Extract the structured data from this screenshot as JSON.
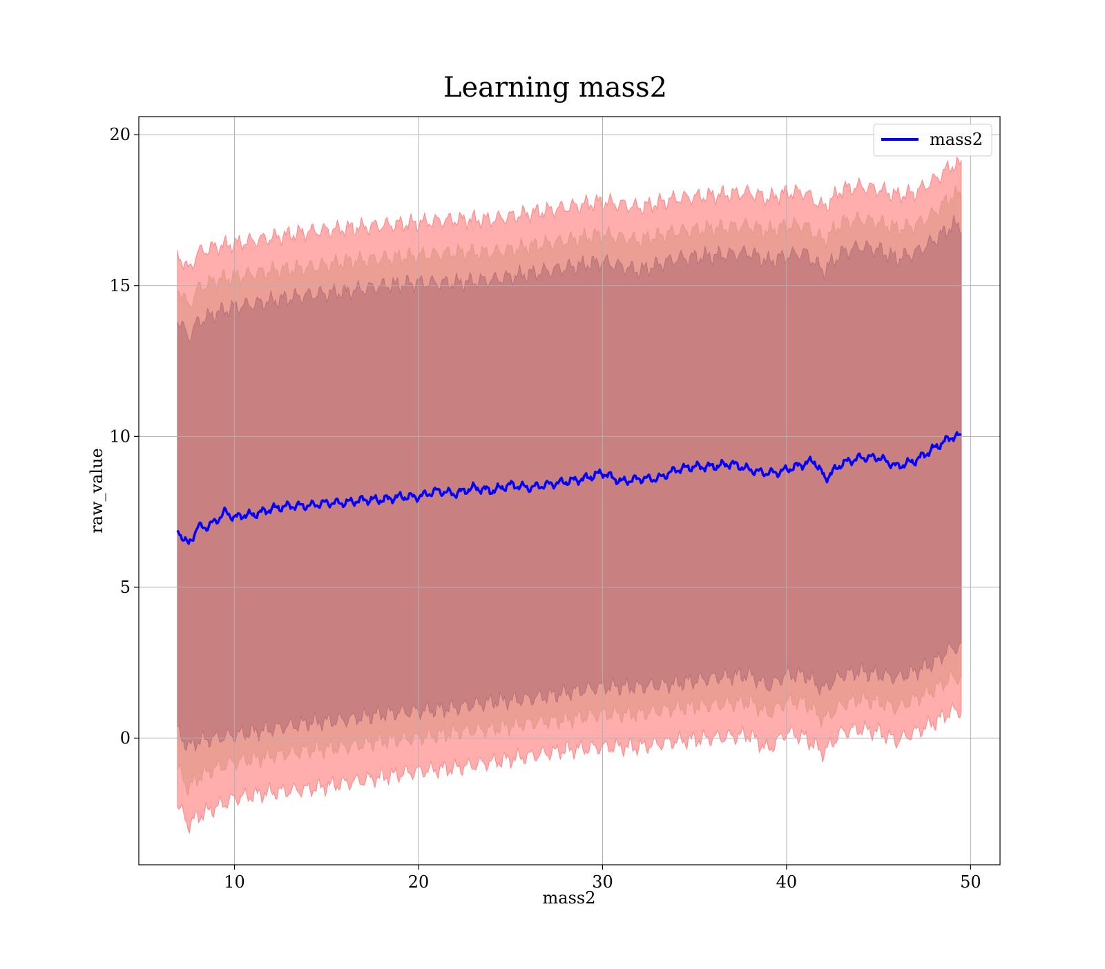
{
  "chart_data": {
    "type": "area",
    "title": "Learning mass2",
    "xlabel": "mass2",
    "ylabel": "raw_value",
    "xlim": [
      4.8,
      51.6
    ],
    "ylim": [
      -4.2,
      20.6
    ],
    "xticks": [
      10,
      20,
      30,
      40,
      50
    ],
    "yticks": [
      0,
      5,
      10,
      15,
      20
    ],
    "grid": true,
    "legend_position": "top-right",
    "x_start": 6.9,
    "x_end": 49.5,
    "series": [
      {
        "name": "mass2",
        "color": "#0000ff",
        "x": [
          6.9,
          7.5,
          8,
          8.5,
          9,
          9.5,
          10,
          10.5,
          11,
          12,
          13,
          14,
          15,
          16,
          17,
          18,
          19,
          20,
          21,
          22,
          23,
          24,
          25,
          26,
          27,
          28,
          29,
          30,
          31,
          32,
          33,
          34,
          35,
          36,
          37,
          38,
          38.7,
          39.5,
          40.5,
          41.5,
          42.1,
          43,
          44,
          45,
          46,
          47,
          48,
          49,
          49.5
        ],
        "values": [
          6.9,
          6.4,
          7.0,
          7.0,
          7.2,
          7.5,
          7.3,
          7.4,
          7.4,
          7.6,
          7.7,
          7.7,
          7.8,
          7.8,
          7.9,
          7.9,
          8.0,
          8.0,
          8.2,
          8.1,
          8.3,
          8.2,
          8.4,
          8.3,
          8.4,
          8.5,
          8.6,
          8.8,
          8.5,
          8.6,
          8.6,
          8.9,
          9.0,
          9.0,
          9.1,
          8.9,
          8.8,
          8.8,
          9.0,
          9.2,
          8.6,
          9.1,
          9.3,
          9.3,
          9.0,
          9.2,
          9.6,
          10.0,
          10.0
        ]
      }
    ],
    "bands": [
      {
        "level": "outer",
        "color": "#ff0000",
        "x": [
          6.9,
          7.5,
          8,
          9,
          10,
          12,
          14,
          16,
          18,
          20,
          22,
          24,
          26,
          28,
          30,
          32,
          34,
          36,
          38,
          39,
          40,
          41,
          42,
          43,
          44,
          45,
          46,
          47,
          48,
          49,
          49.5
        ],
        "lower": [
          -2.2,
          -2.9,
          -2.6,
          -2.3,
          -2.0,
          -1.8,
          -1.7,
          -1.5,
          -1.3,
          -1.1,
          -1.0,
          -0.8,
          -0.6,
          -0.4,
          -0.3,
          -0.3,
          -0.1,
          0.0,
          0.1,
          -0.4,
          0.2,
          0.0,
          -0.5,
          0.2,
          0.3,
          0.2,
          -0.1,
          0.2,
          0.5,
          0.9,
          0.9
        ],
        "upper": [
          16.1,
          15.5,
          16.1,
          16.3,
          16.4,
          16.6,
          16.8,
          16.9,
          17.0,
          17.1,
          17.2,
          17.2,
          17.4,
          17.6,
          17.8,
          17.6,
          17.9,
          18.0,
          18.1,
          17.9,
          18.1,
          18.1,
          17.6,
          18.2,
          18.3,
          18.2,
          18.0,
          18.1,
          18.5,
          19.0,
          19.0
        ]
      },
      {
        "level": "middle",
        "color": "#c08060",
        "x": [
          6.9,
          7.5,
          8,
          9,
          10,
          12,
          14,
          16,
          18,
          20,
          22,
          24,
          26,
          28,
          30,
          32,
          34,
          36,
          38,
          39,
          40,
          41,
          42,
          43,
          44,
          45,
          46,
          47,
          48,
          49,
          49.5
        ],
        "lower": [
          -1.0,
          -1.7,
          -1.3,
          -1.0,
          -0.8,
          -0.6,
          -0.4,
          -0.3,
          -0.1,
          0.0,
          0.2,
          0.3,
          0.5,
          0.6,
          0.8,
          0.8,
          1.0,
          1.1,
          1.2,
          0.8,
          1.2,
          1.2,
          0.6,
          1.1,
          1.3,
          1.2,
          1.0,
          1.3,
          1.6,
          2.0,
          2.0
        ],
        "upper": [
          15.0,
          14.3,
          14.9,
          15.2,
          15.3,
          15.5,
          15.6,
          15.8,
          15.9,
          16.0,
          16.1,
          16.1,
          16.3,
          16.5,
          16.7,
          16.5,
          16.8,
          16.9,
          17.0,
          16.8,
          17.0,
          17.0,
          16.5,
          17.1,
          17.2,
          17.1,
          16.9,
          17.0,
          17.4,
          18.0,
          18.0
        ]
      },
      {
        "level": "inner",
        "color": "#80405a",
        "x": [
          6.9,
          7.5,
          8,
          9,
          10,
          12,
          14,
          16,
          18,
          20,
          22,
          24,
          26,
          28,
          30,
          32,
          34,
          36,
          38,
          39,
          40,
          41,
          42,
          43,
          44,
          45,
          46,
          47,
          48,
          49,
          49.5
        ],
        "lower": [
          0.2,
          -0.3,
          -0.1,
          0.0,
          0.1,
          0.3,
          0.5,
          0.6,
          0.8,
          0.9,
          1.0,
          1.2,
          1.3,
          1.5,
          1.7,
          1.7,
          1.8,
          2.0,
          2.1,
          1.7,
          2.1,
          2.1,
          1.6,
          2.1,
          2.2,
          2.1,
          2.0,
          2.2,
          2.5,
          3.0,
          3.0
        ],
        "upper": [
          13.9,
          13.3,
          13.8,
          14.1,
          14.3,
          14.5,
          14.7,
          14.8,
          15.0,
          15.1,
          15.1,
          15.2,
          15.4,
          15.6,
          15.8,
          15.5,
          15.9,
          16.0,
          16.1,
          15.8,
          16.0,
          16.1,
          15.5,
          16.1,
          16.3,
          16.2,
          15.9,
          16.1,
          16.5,
          17.0,
          17.0
        ]
      }
    ]
  }
}
